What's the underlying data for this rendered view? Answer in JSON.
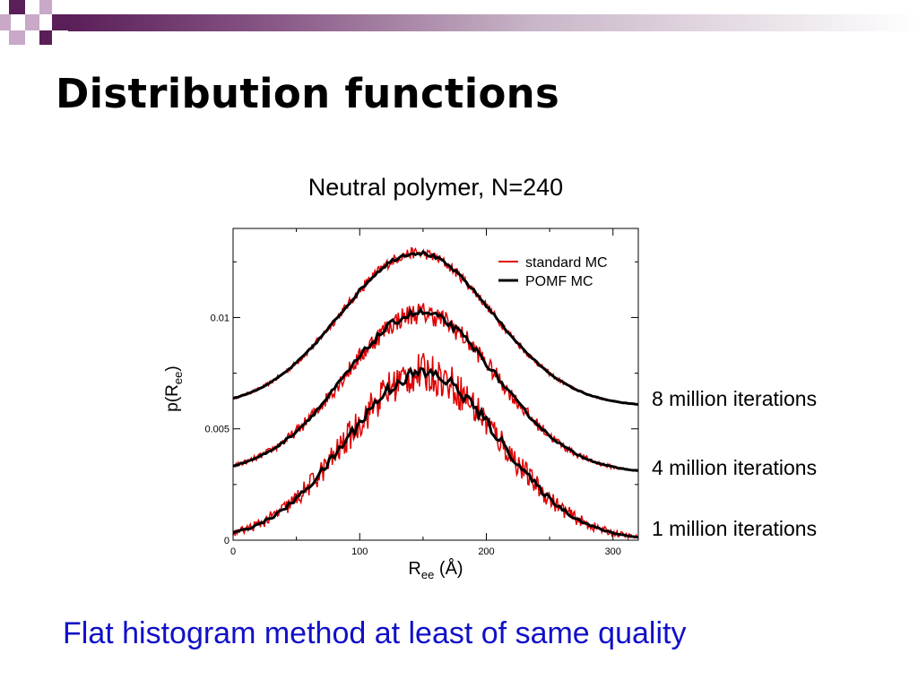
{
  "slide": {
    "title": "Distribution functions",
    "footer": "Flat histogram method at least of same quality",
    "accent_color": "#5a1e58",
    "footer_color": "#1010c8"
  },
  "chart_data": {
    "type": "line",
    "title": "Neutral polymer, N=240",
    "xlabel_main": "R",
    "xlabel_sub": "ee",
    "xlabel_unit": "(Å)",
    "ylabel_main": "p(R",
    "ylabel_sub": "ee",
    "ylabel_close": ")",
    "xlim": [
      0,
      320
    ],
    "ylim": [
      0,
      0.014
    ],
    "x_ticks": [
      0,
      100,
      200,
      300
    ],
    "x_tick_labels": [
      "0",
      "100",
      "200",
      "300"
    ],
    "y_ticks": [
      0,
      0.005,
      0.01
    ],
    "y_tick_labels": [
      "0",
      "0.005",
      "0.01"
    ],
    "grid": false,
    "legend_position": "top-right",
    "series": [
      {
        "name": "standard MC",
        "color": "#e00000"
      },
      {
        "name": "POMF MC",
        "color": "#000000"
      }
    ],
    "curve_sets": [
      {
        "label": "8 million iterations",
        "baseline": 0.006,
        "peak": 0.0129,
        "center": 145,
        "noise": 0.00025
      },
      {
        "label": "4 million iterations",
        "baseline": 0.003,
        "peak": 0.0102,
        "center": 148,
        "noise": 0.0005
      },
      {
        "label": "1 million iterations",
        "baseline": 0.0,
        "peak": 0.0075,
        "center": 150,
        "noise": 0.0009
      }
    ]
  }
}
